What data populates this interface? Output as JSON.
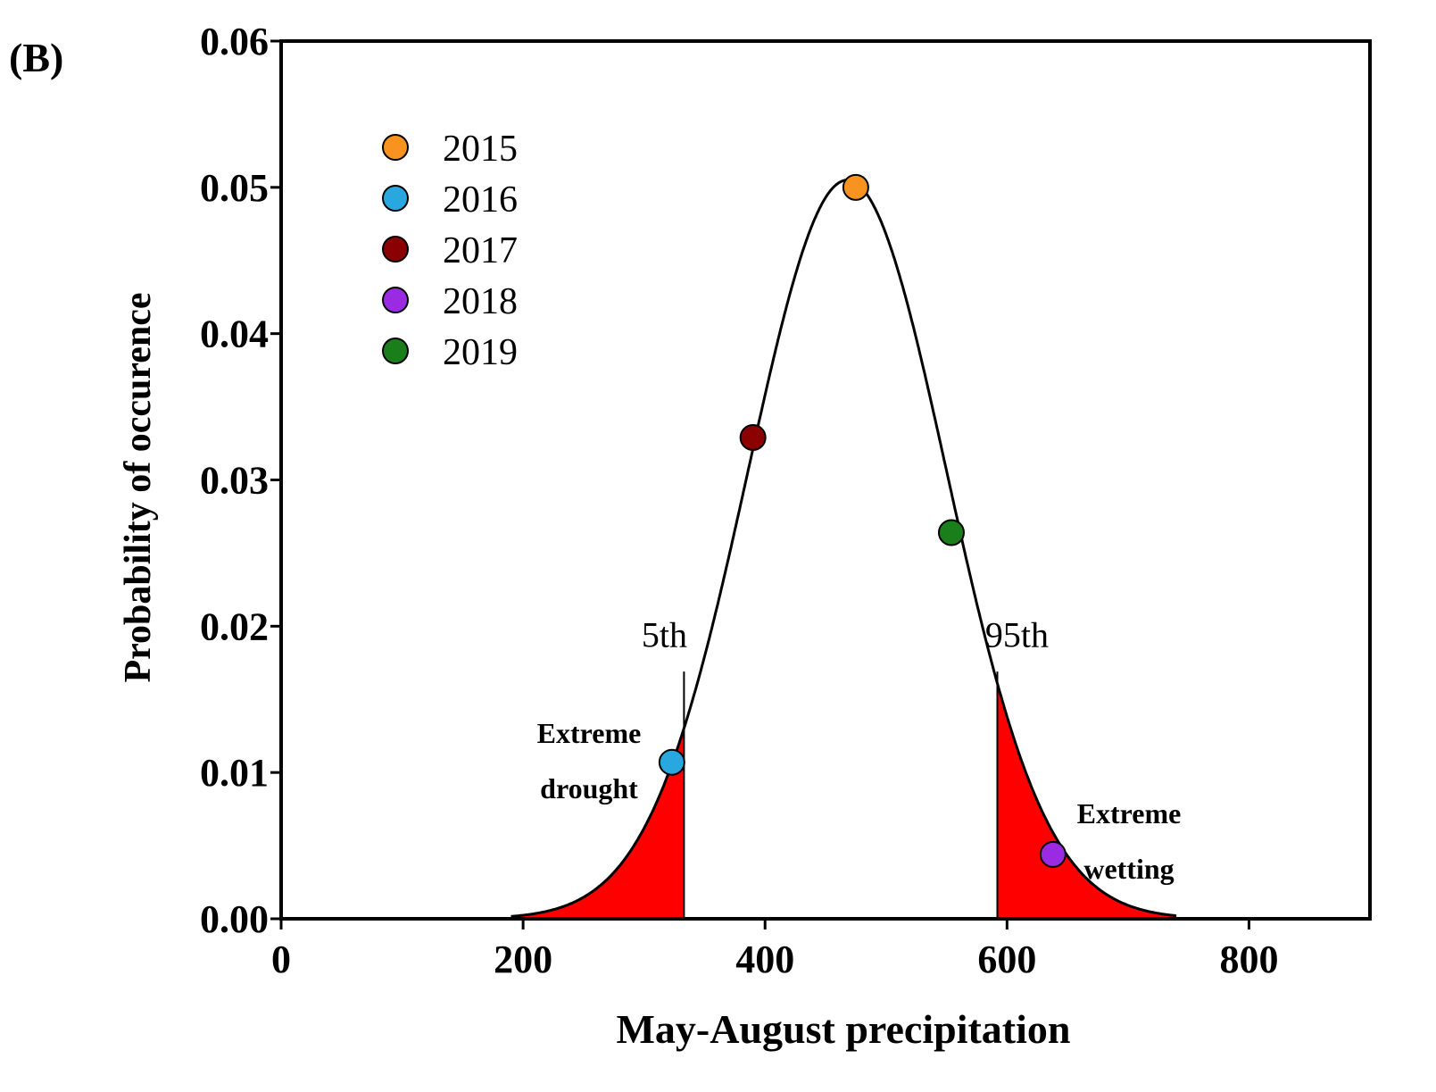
{
  "panel_label": "(B)",
  "chart_data": {
    "type": "line",
    "title": "",
    "xlabel": "May-August precipitation",
    "ylabel": "Probability of occurence",
    "xlim": [
      0,
      900
    ],
    "ylim": [
      0,
      0.06
    ],
    "x_ticks": [
      0,
      200,
      400,
      600,
      800
    ],
    "x_tick_labels": [
      "0",
      "200",
      "400",
      "600",
      "800"
    ],
    "y_ticks": [
      0,
      0.01,
      0.02,
      0.03,
      0.04,
      0.05,
      0.06
    ],
    "y_tick_labels": [
      "0.00",
      "0.01",
      "0.02",
      "0.03",
      "0.04",
      "0.05",
      "0.06"
    ],
    "grid": false,
    "legend_position": "top-left",
    "curve": {
      "distribution": "normal",
      "mean": 468,
      "sd": 82,
      "peak_value": 0.0505,
      "x_range": [
        190,
        740
      ]
    },
    "percentiles": [
      {
        "label": "5th",
        "x": 333
      },
      {
        "label": "95th",
        "x": 592
      }
    ],
    "shaded_regions": [
      {
        "from": 190,
        "to": 333,
        "color": "#ff0000"
      },
      {
        "from": 592,
        "to": 740,
        "color": "#ff0000"
      }
    ],
    "annotations": [
      {
        "lines": [
          "Extreme",
          "drought"
        ]
      },
      {
        "lines": [
          "Extreme",
          "wetting"
        ]
      }
    ],
    "series": [
      {
        "name": "2015",
        "x": 475,
        "y": 0.05,
        "color": "#f7931e"
      },
      {
        "name": "2016",
        "x": 323,
        "y": 0.0107,
        "color": "#29a8e0"
      },
      {
        "name": "2017",
        "x": 390,
        "y": 0.0329,
        "color": "#8b0000"
      },
      {
        "name": "2018",
        "x": 638,
        "y": 0.0044,
        "color": "#9a2be2"
      },
      {
        "name": "2019",
        "x": 554,
        "y": 0.0264,
        "color": "#1a7f1a"
      }
    ]
  }
}
